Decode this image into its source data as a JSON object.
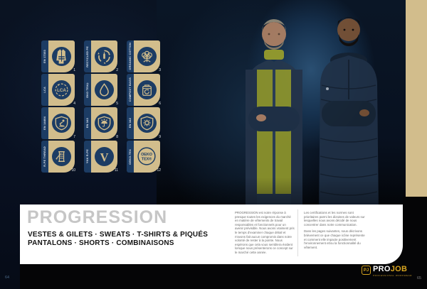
{
  "page": {
    "left_number": "64",
    "right_number": "65"
  },
  "badges": [
    {
      "n": "1",
      "label": "EN 17353",
      "icon": "hi-vis-vest-icon"
    },
    {
      "n": "2",
      "label": "RECYCLED PE",
      "icon": "recycle-icon"
    },
    {
      "n": "3",
      "label": "ORGANIC COTTON",
      "icon": "cotton-icon"
    },
    {
      "n": "4",
      "label": "LCA",
      "icon": "lca-icon"
    },
    {
      "n": "5",
      "label": "EKO TEX®",
      "icon": "droplet-icon"
    },
    {
      "n": "6",
      "label": "COMPOST BAGS",
      "icon": "compost-bag-icon"
    },
    {
      "n": "7",
      "label": "EN 14404",
      "icon": "knee-shield-icon"
    },
    {
      "n": "8",
      "label": "EN 343",
      "icon": "rain-shield-icon"
    },
    {
      "n": "9",
      "label": "EN 342",
      "icon": "cold-shield-icon"
    },
    {
      "n": "10",
      "label": "R-PE THREAD",
      "icon": "thread-spool-icon"
    },
    {
      "n": "11",
      "label": "YKK R-PE",
      "icon": "zipper-v-icon"
    },
    {
      "n": "12",
      "label": "OEKO-TEX",
      "icon": "oeko-tex-icon",
      "circle_text": [
        "OEKO",
        "TEX®"
      ]
    }
  ],
  "band": {
    "title": "PROGRESSION",
    "subtitle_line1": "VESTES & GILETS · SWEATS · T-SHIRTS & PIQUÉS",
    "subtitle_line2": "PANTALONS · SHORTS · COMBINAISONS",
    "col1_paragraphs": [
      "PROGRESSION est notre réponse à presque toutes les exigences du marché en matière de vêtements de travail responsables et fonctionnels pour un avenir prévisible. Nous avons vraiment pris le temps d'examiner chaque détail et n'avons fait aucun compromis dans notre volonté de rester à la pointe. Nous espérons que cela vous semblera évident lorsque nous présenterons ce concept sur le marché cette année."
    ],
    "col2_paragraphs": [
      "Les certifications et les normes sont prioritaires parmi les dizaines de valeurs sur lesquelles nous avons décidé de nous concentrer dans notre communication.",
      "Dans les pages suivantes, nous décrivons brièvement ce que chaque icône représente et comment elle impacte positivement l'environnement et/ou la fonctionnalité du vêtement."
    ]
  },
  "logo": {
    "monogram": "PJ",
    "name_pro": "PRO",
    "name_job": "JOB",
    "tagline": "PROFESSIONAL WORKWEAR"
  },
  "colors": {
    "tan": "#d2bd8c",
    "navy": "#1c3c64",
    "gold": "#d8a520",
    "band_bg": "#ffffff"
  }
}
